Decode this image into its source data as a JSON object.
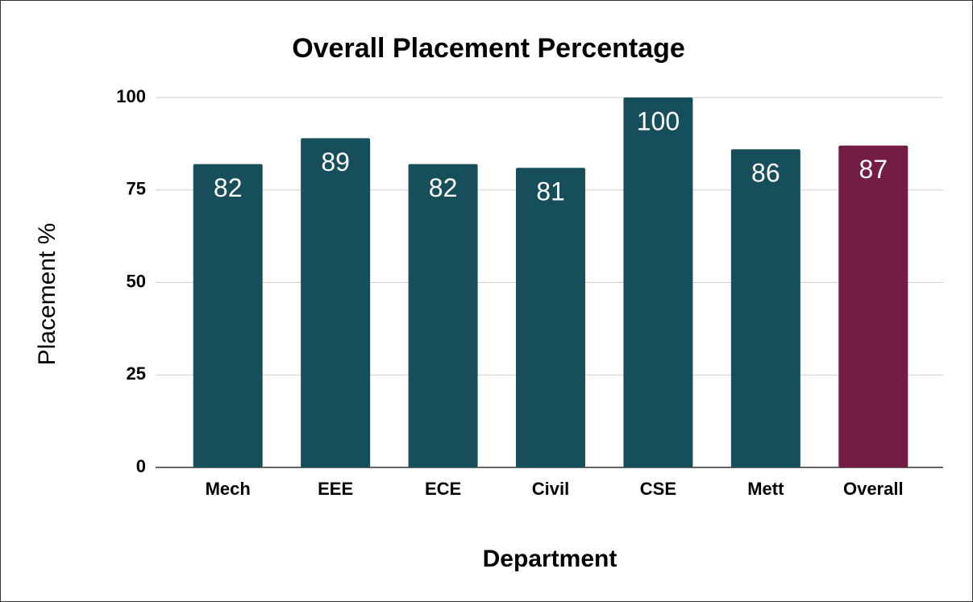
{
  "chart_data": {
    "type": "bar",
    "title": "Overall Placement Percentage",
    "x_label": "Department",
    "y_label": "Placement %",
    "categories": [
      "Mech",
      "EEE",
      "ECE",
      "Civil",
      "CSE",
      "Mett",
      "Overall"
    ],
    "values": [
      82,
      89,
      82,
      81,
      100,
      86,
      87
    ],
    "colors": [
      "#174e5c",
      "#174e5c",
      "#174e5c",
      "#174e5c",
      "#174e5c",
      "#174e5c",
      "#721c46"
    ],
    "ylim": [
      0,
      100
    ],
    "yticks": [
      0,
      25,
      50,
      75,
      100
    ],
    "grid": true
  }
}
